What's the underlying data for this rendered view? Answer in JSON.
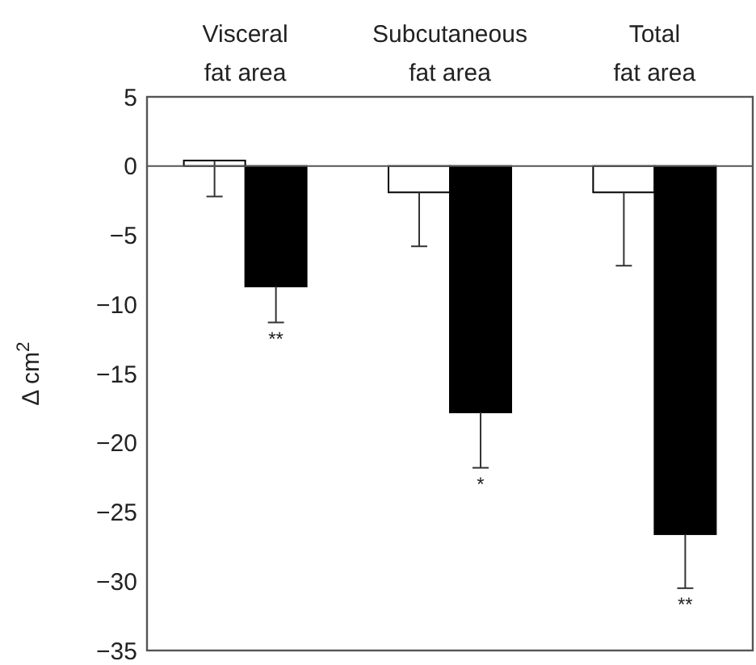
{
  "chart_data": {
    "type": "bar",
    "ylabel": "Δ cm$^{2}$",
    "categories": [
      "Visceral\nfat area",
      "Subcutaneous\nfat area",
      "Total\nfat area"
    ],
    "series": [
      {
        "color": "#ffffff",
        "values": [
          0.4,
          -1.9,
          -1.9
        ],
        "errors": [
          [
            -2.2,
            0.4
          ],
          [
            -5.8,
            -1.9
          ],
          [
            -7.2,
            -1.9
          ]
        ]
      },
      {
        "color": "#000000",
        "values": [
          -8.7,
          -17.8,
          -26.6
        ],
        "errors": [
          [
            -11.3,
            -8.7
          ],
          [
            -21.8,
            -17.8
          ],
          [
            -30.5,
            -26.6
          ]
        ]
      }
    ],
    "ylim": [
      -35,
      5
    ],
    "yticks": [
      5,
      0,
      -5,
      -10,
      -15,
      -20,
      -25,
      -30,
      -35
    ],
    "ref_lines": [
      {
        "axis": "y",
        "value": 0
      }
    ],
    "annotations": [
      "**",
      "*",
      "**"
    ],
    "grid": false
  }
}
